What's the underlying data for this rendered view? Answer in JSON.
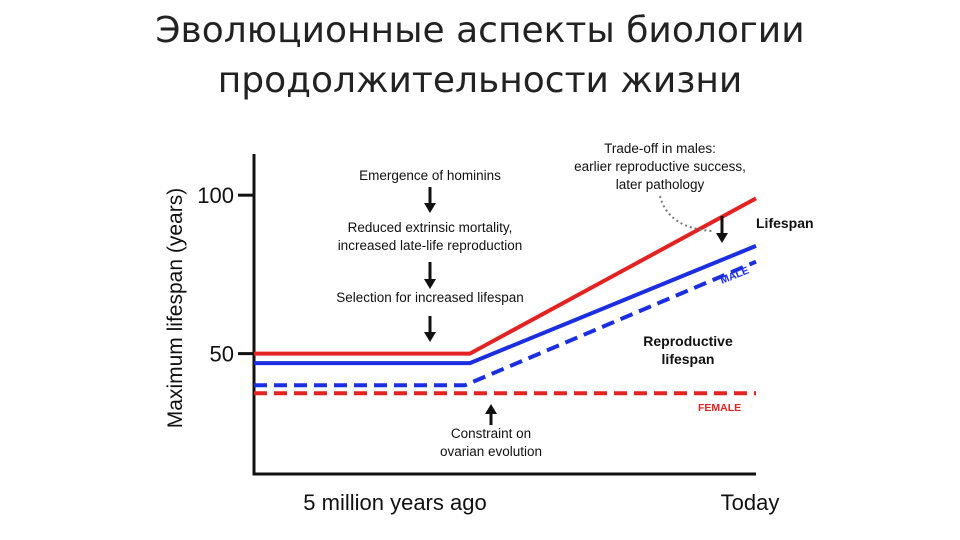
{
  "slide": {
    "title_line1": "Эволюционные аспекты биологии",
    "title_line2": "продолжительности жизни"
  },
  "colors": {
    "lifespan": "#e32222",
    "reproductive": "#1b2ee0",
    "axis": "#111111",
    "annotation_arrow": "#111111",
    "dotted_leader": "#777777"
  },
  "chart_data": {
    "type": "line",
    "ylabel": "Maximum lifespan (years)",
    "xlabel": "",
    "x_tick_labels": [
      "5 million years ago",
      "Today"
    ],
    "y_ticks": [
      50,
      100
    ],
    "ylim": [
      12,
      113
    ],
    "xlim": [
      0,
      100
    ],
    "grid": false,
    "series": [
      {
        "name": "Lifespan",
        "style": "solid",
        "color": "#e32222",
        "points": [
          [
            0,
            50
          ],
          [
            43,
            50
          ],
          [
            100,
            99
          ]
        ]
      },
      {
        "name": "MALE",
        "style": "solid",
        "color": "#1b2ee0",
        "points": [
          [
            0,
            47
          ],
          [
            43,
            47
          ],
          [
            100,
            84
          ]
        ]
      },
      {
        "name": "MALE",
        "style": "dashed",
        "color": "#1b2ee0",
        "points": [
          [
            0,
            40
          ],
          [
            42,
            40
          ],
          [
            100,
            79
          ]
        ]
      },
      {
        "name": "FEMALE",
        "style": "dashed",
        "color": "#e32222",
        "points": [
          [
            0,
            37.5
          ],
          [
            100,
            37.5
          ]
        ]
      }
    ],
    "annotations": {
      "emergence": "Emergence of hominins",
      "reduced_line1": "Reduced extrinsic mortality,",
      "reduced_line2": "increased late-life reproduction",
      "selection": "Selection for increased lifespan",
      "tradeoff_line1": "Trade-off in males:",
      "tradeoff_line2": "earlier reproductive success,",
      "tradeoff_line3": "later pathology",
      "lifespan_label": "Lifespan",
      "reproductive_line1": "Reproductive",
      "reproductive_line2": "lifespan",
      "male_label": "MALE",
      "female_label": "FEMALE",
      "constraint_line1": "Constraint on",
      "constraint_line2": "ovarian evolution"
    }
  }
}
